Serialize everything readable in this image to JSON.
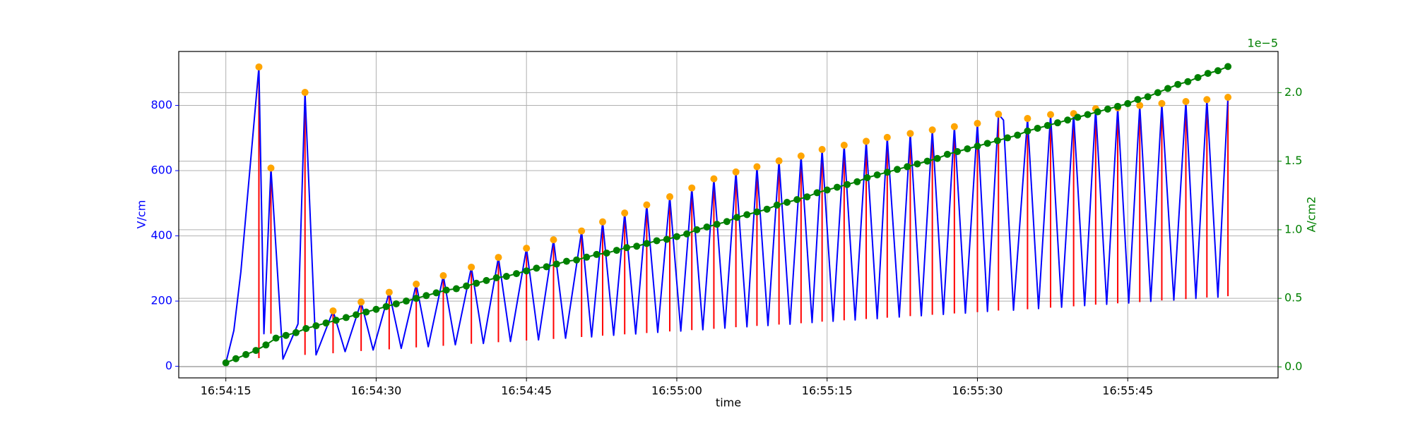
{
  "chart_data": {
    "type": "line",
    "xlabel": "time",
    "ylabel": "V/cm",
    "y2label": "A/cm2",
    "y2_offset": "1e−5",
    "grid": true,
    "xlim": [
      "16:54:10.3",
      "16:56:00"
    ],
    "xticks": [
      "16:54:15",
      "16:54:30",
      "16:54:45",
      "16:55:00",
      "16:55:15",
      "16:55:30",
      "16:55:45"
    ],
    "ylim": [
      -35.5,
      965.5
    ],
    "yticks": [
      0,
      200,
      400,
      600,
      800
    ],
    "y2lim": [
      -0.08,
      2.3
    ],
    "y2ticks": [
      {
        "value": 0,
        "label": "0.0"
      },
      0.5,
      {
        "value": 1,
        "label": "1.0"
      },
      1.5,
      {
        "value": 2,
        "label": "2.0"
      }
    ],
    "series": [
      {
        "type": "line",
        "color": "#0000ff",
        "x": [
          "16:54:15",
          "16:54:15.8",
          "16:54:16.5",
          "16:54:18.3",
          "16:54:18.8",
          "16:54:19.5",
          "16:54:20.7",
          "16:54:22.2",
          "16:54:22.9",
          "16:54:24",
          "16:54:25.7",
          "16:54:26.9",
          "16:54:28.5",
          "16:54:29.7",
          "16:54:31.3",
          "16:54:32.5",
          "16:54:34",
          "16:54:35.2",
          "16:54:36.7",
          "16:54:37.9",
          "16:54:39.5",
          "16:54:40.7",
          "16:54:42.2",
          "16:54:43.4",
          "16:54:45",
          "16:54:46.2",
          "16:54:47.7",
          "16:54:48.9",
          "16:54:50.5",
          "16:54:51.5",
          "16:54:52.6",
          "16:54:53.7",
          "16:54:54.8",
          "16:54:55.9",
          "16:54:57",
          "16:54:58.1",
          "16:54:59.3",
          "16:55:00.4",
          "16:55:01.5",
          "16:55:02.6",
          "16:55:03.7",
          "16:55:04.8",
          "16:55:05.9",
          "16:55:07",
          "16:55:08",
          "16:55:09.1",
          "16:55:10.2",
          "16:55:11.3",
          "16:55:12.4",
          "16:55:13.5",
          "16:55:14.5",
          "16:55:15.6",
          "16:55:16.7",
          "16:55:17.8",
          "16:55:18.9",
          "16:55:20",
          "16:55:21",
          "16:55:22.2",
          "16:55:23.3",
          "16:55:24.4",
          "16:55:25.5",
          "16:55:26.6",
          "16:55:27.7",
          "16:55:28.8",
          "16:55:30",
          "16:55:31",
          "16:55:32.1",
          "16:55:32.6",
          "16:55:33.6",
          "16:55:35",
          "16:55:36.1",
          "16:55:37.3",
          "16:55:38.4",
          "16:55:39.6",
          "16:55:40.7",
          "16:55:41.8",
          "16:55:42.9",
          "16:55:44",
          "16:55:45.1",
          "16:55:46.2",
          "16:55:47.3",
          "16:55:48.4",
          "16:55:49.6",
          "16:55:50.8",
          "16:55:51.8",
          "16:55:52.9",
          "16:55:54",
          "16:55:55"
        ],
        "values": [
          10,
          110,
          290,
          918,
          100,
          608,
          22,
          130,
          840,
          35,
          170,
          45,
          197,
          50,
          227,
          55,
          252,
          60,
          278,
          66,
          304,
          70,
          334,
          76,
          362,
          81,
          388,
          86,
          415,
          90,
          443,
          95,
          470,
          99,
          495,
          104,
          520,
          108,
          547,
          112,
          575,
          117,
          596,
          121,
          612,
          125,
          630,
          129,
          645,
          134,
          665,
          138,
          678,
          142,
          690,
          146,
          702,
          151,
          714,
          155,
          725,
          159,
          735,
          163,
          745,
          168,
          773,
          755,
          172,
          760,
          177,
          772,
          181,
          775,
          186,
          790,
          190,
          793,
          194,
          800,
          199,
          806,
          203,
          812,
          208,
          818,
          212,
          825
        ]
      },
      {
        "type": "stem",
        "color": "#ff0000",
        "marker_color": "#ffa500",
        "x": [
          "16:54:18.3",
          "16:54:19.5",
          "16:54:22.9",
          "16:54:25.7",
          "16:54:28.5",
          "16:54:31.3",
          "16:54:34",
          "16:54:36.7",
          "16:54:39.5",
          "16:54:42.2",
          "16:54:45",
          "16:54:47.7",
          "16:54:50.5",
          "16:54:52.6",
          "16:54:54.8",
          "16:54:57",
          "16:54:59.3",
          "16:55:01.5",
          "16:55:03.7",
          "16:55:05.9",
          "16:55:08",
          "16:55:10.2",
          "16:55:12.4",
          "16:55:14.5",
          "16:55:16.7",
          "16:55:18.9",
          "16:55:21",
          "16:55:23.3",
          "16:55:25.5",
          "16:55:27.7",
          "16:55:30",
          "16:55:32.1",
          "16:55:35",
          "16:55:37.3",
          "16:55:39.6",
          "16:55:41.8",
          "16:55:44",
          "16:55:46.2",
          "16:55:48.4",
          "16:55:50.8",
          "16:55:52.9",
          "16:55:55"
        ],
        "lows": [
          25,
          100,
          35,
          40,
          47,
          52,
          58,
          63,
          69,
          74,
          79,
          84,
          90,
          94,
          98,
          102,
          107,
          111,
          115,
          120,
          124,
          128,
          132,
          137,
          141,
          145,
          149,
          154,
          158,
          162,
          166,
          171,
          175,
          180,
          184,
          189,
          193,
          197,
          202,
          206,
          211,
          215
        ],
        "values": [
          918,
          608,
          840,
          170,
          197,
          227,
          252,
          278,
          304,
          334,
          362,
          388,
          415,
          443,
          470,
          495,
          520,
          547,
          575,
          596,
          612,
          630,
          645,
          665,
          678,
          690,
          702,
          714,
          725,
          735,
          745,
          773,
          760,
          772,
          775,
          790,
          793,
          800,
          806,
          812,
          818,
          825
        ]
      },
      {
        "type": "line",
        "axis": "y2",
        "color": "#008000",
        "marker": "o",
        "x": [
          "16:54:15",
          "16:54:16",
          "16:54:17",
          "16:54:18",
          "16:54:19",
          "16:54:20",
          "16:54:21",
          "16:54:22",
          "16:54:23",
          "16:54:24",
          "16:54:25",
          "16:54:26",
          "16:54:27",
          "16:54:28",
          "16:54:29",
          "16:54:30",
          "16:54:31",
          "16:54:32",
          "16:54:33",
          "16:54:34",
          "16:54:35",
          "16:54:36",
          "16:54:37",
          "16:54:38",
          "16:54:39",
          "16:54:40",
          "16:54:41",
          "16:54:42",
          "16:54:43",
          "16:54:44",
          "16:54:45",
          "16:54:46",
          "16:54:47",
          "16:54:48",
          "16:54:49",
          "16:54:50",
          "16:54:51",
          "16:54:52",
          "16:54:53",
          "16:54:54",
          "16:54:55",
          "16:54:56",
          "16:54:57",
          "16:54:58",
          "16:54:59",
          "16:55:00",
          "16:55:01",
          "16:55:02",
          "16:55:03",
          "16:55:04",
          "16:55:05",
          "16:55:06",
          "16:55:07",
          "16:55:08",
          "16:55:09",
          "16:55:10",
          "16:55:11",
          "16:55:12",
          "16:55:13",
          "16:55:14",
          "16:55:15",
          "16:55:16",
          "16:55:17",
          "16:55:18",
          "16:55:19",
          "16:55:20",
          "16:55:21",
          "16:55:22",
          "16:55:23",
          "16:55:24",
          "16:55:25",
          "16:55:26",
          "16:55:27",
          "16:55:28",
          "16:55:29",
          "16:55:30",
          "16:55:31",
          "16:55:32",
          "16:55:33",
          "16:55:34",
          "16:55:35",
          "16:55:36",
          "16:55:37",
          "16:55:38",
          "16:55:39",
          "16:55:40",
          "16:55:41",
          "16:55:42",
          "16:55:43",
          "16:55:44",
          "16:55:45",
          "16:55:46",
          "16:55:47",
          "16:55:48",
          "16:55:49",
          "16:55:50",
          "16:55:51",
          "16:55:52",
          "16:55:53",
          "16:55:54",
          "16:55:55"
        ],
        "values": [
          0.03,
          0.06,
          0.09,
          0.12,
          0.16,
          0.21,
          0.23,
          0.25,
          0.28,
          0.3,
          0.32,
          0.34,
          0.36,
          0.38,
          0.4,
          0.42,
          0.44,
          0.46,
          0.48,
          0.5,
          0.52,
          0.54,
          0.56,
          0.57,
          0.59,
          0.61,
          0.63,
          0.65,
          0.66,
          0.68,
          0.7,
          0.72,
          0.73,
          0.75,
          0.77,
          0.78,
          0.8,
          0.82,
          0.83,
          0.85,
          0.87,
          0.88,
          0.9,
          0.92,
          0.93,
          0.95,
          0.97,
          1.0,
          1.02,
          1.04,
          1.06,
          1.09,
          1.11,
          1.13,
          1.15,
          1.18,
          1.2,
          1.22,
          1.24,
          1.27,
          1.29,
          1.31,
          1.33,
          1.35,
          1.38,
          1.4,
          1.42,
          1.44,
          1.46,
          1.48,
          1.5,
          1.52,
          1.55,
          1.57,
          1.59,
          1.61,
          1.63,
          1.65,
          1.67,
          1.69,
          1.72,
          1.74,
          1.76,
          1.78,
          1.8,
          1.82,
          1.84,
          1.86,
          1.88,
          1.9,
          1.92,
          1.95,
          1.97,
          2.0,
          2.03,
          2.06,
          2.08,
          2.11,
          2.14,
          2.16,
          2.19
        ]
      }
    ]
  }
}
